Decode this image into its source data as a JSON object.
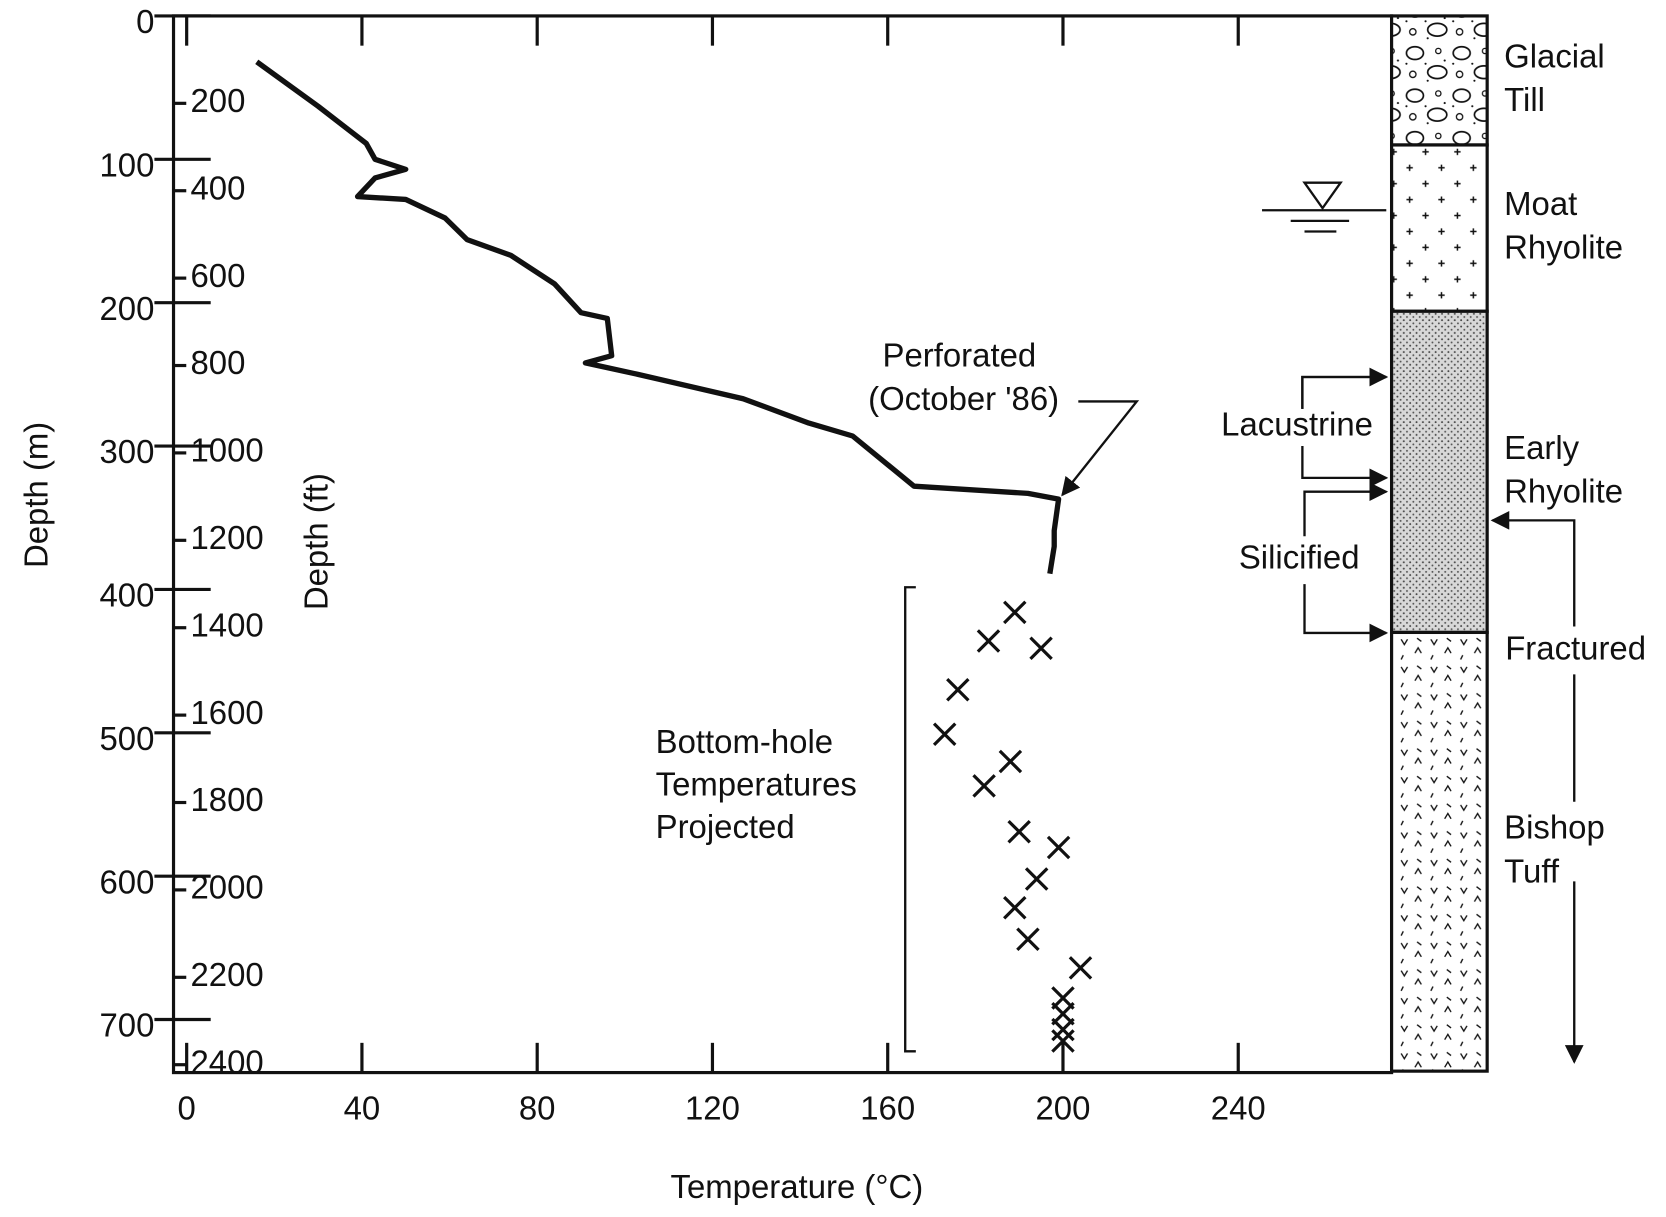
{
  "chart_data": {
    "type": "line",
    "x_label": "Temperature (°C)",
    "y_label": "Depth (m)",
    "y2_label": "Depth (ft)",
    "xlim": [
      -3,
      275
    ],
    "xticks": [
      0,
      40,
      80,
      120,
      160,
      200,
      240
    ],
    "ylim": [
      0,
      737
    ],
    "y_inverted": true,
    "yticks": [
      0,
      100,
      200,
      300,
      400,
      500,
      600,
      700
    ],
    "y2lim": [
      0,
      2418
    ],
    "y2ticks": [
      200,
      400,
      600,
      800,
      1000,
      1200,
      1400,
      1600,
      1800,
      2000,
      2200,
      2400
    ],
    "series": [
      {
        "type": "line",
        "color": "#111111",
        "x": [
          16,
          30,
          41,
          43,
          50,
          43,
          39,
          50,
          59,
          64,
          74,
          84,
          90,
          96,
          97,
          91,
          103,
          127,
          142,
          152,
          166,
          192,
          199,
          198,
          198,
          197
        ],
        "y": [
          32,
          63,
          89,
          100,
          107,
          113,
          126,
          128,
          141,
          156,
          167,
          187,
          207,
          211,
          237,
          242,
          250,
          267,
          284,
          293,
          328,
          333,
          337,
          359,
          370,
          389
        ]
      },
      {
        "type": "scatter",
        "marker": "x",
        "color": "#111111",
        "x": [
          189,
          183,
          195,
          176,
          173,
          188,
          182,
          190,
          199,
          194,
          189,
          192,
          204,
          200,
          200,
          200,
          200
        ],
        "y": [
          416,
          436,
          441,
          470,
          501,
          520,
          537,
          569,
          580,
          602,
          622,
          644,
          664,
          685,
          696,
          707,
          715
        ]
      }
    ],
    "annotations": {
      "perforated": [
        "Perforated",
        "(October '86)"
      ],
      "bottom_hole": [
        "Bottom-hole",
        "Temperatures",
        "Projected"
      ],
      "lacustrine": "Lacustrine",
      "silicified": "Silicified",
      "fractured": "Fractured"
    },
    "lithology": [
      {
        "label": [
          "Glacial",
          "Till"
        ],
        "top": 0,
        "bottom": 90
      },
      {
        "label": [
          "Moat",
          "Rhyolite"
        ],
        "top": 90,
        "bottom": 206
      },
      {
        "label": [
          "Early",
          "Rhyolite"
        ],
        "top": 206,
        "bottom": 430
      },
      {
        "label": [
          "Bishop",
          "Tuff"
        ],
        "top": 430,
        "bottom": 736
      }
    ]
  }
}
